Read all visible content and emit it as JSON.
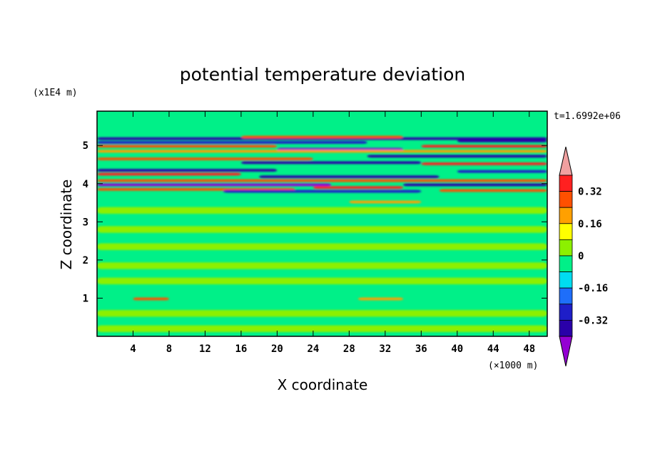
{
  "chart_data": {
    "type": "heatmap",
    "title": "potential temperature deviation",
    "xlabel": "X coordinate",
    "ylabel": "Z coordinate",
    "x_unit": "(×1000 m)",
    "y_unit": "(x1E4 m)",
    "time_label": "t=1.6992e+06",
    "xlim": [
      0,
      50
    ],
    "ylim": [
      0,
      5.9
    ],
    "x_ticks": [
      4,
      8,
      12,
      16,
      20,
      24,
      28,
      32,
      36,
      40,
      44,
      48
    ],
    "y_ticks": [
      1,
      2,
      3,
      4,
      5
    ],
    "colorbar": {
      "levels": [
        -0.4,
        -0.32,
        -0.24,
        -0.16,
        -0.08,
        0,
        0.08,
        0.16,
        0.24,
        0.32,
        0.4
      ],
      "labels": [
        "0.32",
        "0.16",
        "0",
        "-0.16",
        "-0.32"
      ],
      "colors": [
        "#9400d3",
        "#2a00a8",
        "#1e1ec8",
        "#1e6efa",
        "#00dcf0",
        "#00f088",
        "#8cf000",
        "#ffff00",
        "#ffa000",
        "#ff5000",
        "#ff2020",
        "#f0a0a0"
      ]
    },
    "background_color": "#00f088",
    "bands": [
      {
        "z": 5.18,
        "x0": 0,
        "x1": 50,
        "value": -0.36
      },
      {
        "z": 5.08,
        "x0": 0,
        "x1": 30,
        "value": -0.3
      },
      {
        "z": 5.12,
        "x0": 40,
        "x1": 50,
        "value": -0.35
      },
      {
        "z": 5.22,
        "x0": 16,
        "x1": 34,
        "value": 0.3
      },
      {
        "z": 4.98,
        "x0": 0,
        "x1": 20,
        "value": 0.3
      },
      {
        "z": 4.98,
        "x0": 36,
        "x1": 50,
        "value": 0.36
      },
      {
        "z": 4.9,
        "x0": 20,
        "x1": 34,
        "value": -0.42
      },
      {
        "z": 4.85,
        "x0": 0,
        "x1": 50,
        "value": 0.2
      },
      {
        "z": 4.72,
        "x0": 30,
        "x1": 50,
        "value": -0.34
      },
      {
        "z": 4.65,
        "x0": 0,
        "x1": 24,
        "value": 0.3
      },
      {
        "z": 4.55,
        "x0": 16,
        "x1": 36,
        "value": -0.34
      },
      {
        "z": 4.52,
        "x0": 36,
        "x1": 50,
        "value": 0.34
      },
      {
        "z": 4.35,
        "x0": 0,
        "x1": 20,
        "value": -0.38
      },
      {
        "z": 4.32,
        "x0": 40,
        "x1": 50,
        "value": -0.3
      },
      {
        "z": 4.25,
        "x0": 0,
        "x1": 16,
        "value": 0.36
      },
      {
        "z": 4.18,
        "x0": 18,
        "x1": 38,
        "value": -0.34
      },
      {
        "z": 4.08,
        "x0": 0,
        "x1": 50,
        "value": 0.3
      },
      {
        "z": 3.97,
        "x0": 0,
        "x1": 26,
        "value": -0.44
      },
      {
        "z": 3.97,
        "x0": 34,
        "x1": 50,
        "value": -0.38
      },
      {
        "z": 3.9,
        "x0": 24,
        "x1": 34,
        "value": 0.38
      },
      {
        "z": 3.85,
        "x0": 0,
        "x1": 22,
        "value": 0.28
      },
      {
        "z": 3.8,
        "x0": 14,
        "x1": 36,
        "value": -0.3
      },
      {
        "z": 3.82,
        "x0": 38,
        "x1": 50,
        "value": 0.3
      },
      {
        "z": 3.52,
        "x0": 28,
        "x1": 36,
        "value": 0.2
      },
      {
        "z": 3.3,
        "x0": 0,
        "x1": 50,
        "value": 0.05
      },
      {
        "z": 2.8,
        "x0": 0,
        "x1": 50,
        "value": 0.05
      },
      {
        "z": 2.35,
        "x0": 0,
        "x1": 50,
        "value": 0.05
      },
      {
        "z": 1.85,
        "x0": 0,
        "x1": 50,
        "value": 0.05
      },
      {
        "z": 1.45,
        "x0": 0,
        "x1": 50,
        "value": 0.05
      },
      {
        "z": 0.98,
        "x0": 4,
        "x1": 8,
        "value": 0.3
      },
      {
        "z": 0.98,
        "x0": 29,
        "x1": 34,
        "value": 0.22
      },
      {
        "z": 0.6,
        "x0": 0,
        "x1": 50,
        "value": 0.05
      },
      {
        "z": 0.2,
        "x0": 0,
        "x1": 50,
        "value": 0.05
      }
    ]
  }
}
